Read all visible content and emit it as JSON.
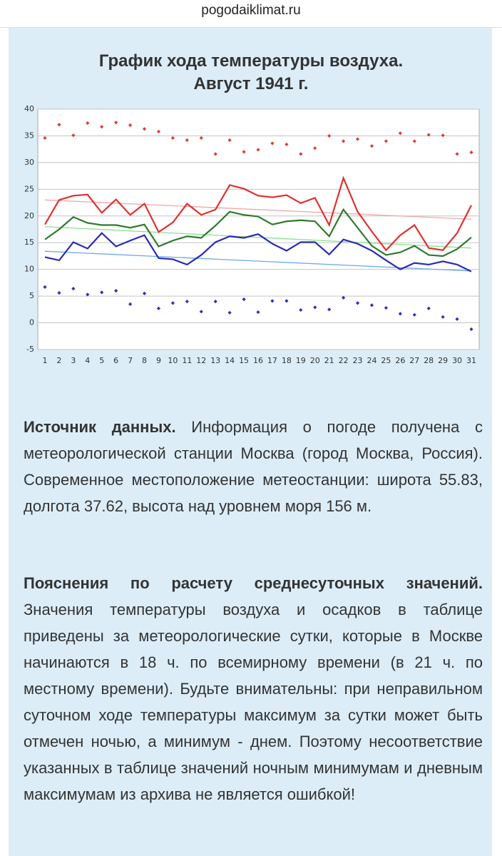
{
  "page": {
    "url": "pogodaiklimat.ru"
  },
  "chart_data": {
    "type": "line",
    "title": "График хода температуры воздуха.",
    "subtitle": "Август 1941 г.",
    "categories": [
      "1",
      "2",
      "3",
      "4",
      "5",
      "6",
      "7",
      "8",
      "9",
      "10",
      "11",
      "12",
      "13",
      "14",
      "15",
      "16",
      "17",
      "18",
      "19",
      "20",
      "21",
      "22",
      "23",
      "24",
      "25",
      "26",
      "27",
      "28",
      "29",
      "30",
      "31"
    ],
    "ylim": [
      -5,
      40
    ],
    "yticks": [
      -5,
      0,
      5,
      10,
      15,
      20,
      25,
      30,
      35,
      40
    ],
    "grid": true,
    "trends": [
      {
        "color": "#f0a8a8",
        "values": [
          23.0,
          19.4
        ]
      },
      {
        "color": "#8ee08e",
        "values": [
          18.0,
          14.0
        ]
      },
      {
        "color": "#70a8e8",
        "values": [
          13.4,
          9.7
        ]
      }
    ],
    "series": [
      {
        "style": "markers",
        "color": "#e03a3a",
        "values": [
          34.6,
          37.1,
          35.1,
          37.4,
          36.7,
          37.5,
          37.0,
          36.3,
          35.8,
          34.6,
          34.2,
          34.6,
          31.6,
          34.2,
          32.0,
          32.4,
          33.6,
          33.4,
          31.6,
          32.7,
          35.0,
          34.0,
          34.4,
          33.1,
          34.0,
          35.5,
          34.0,
          35.2,
          35.1,
          31.6,
          31.9
        ]
      },
      {
        "style": "line",
        "color": "#e03030",
        "values": [
          18.4,
          23.0,
          23.8,
          24.0,
          20.6,
          23.1,
          20.2,
          22.3,
          17.0,
          18.8,
          22.3,
          20.2,
          21.2,
          25.8,
          25.1,
          23.8,
          23.5,
          23.9,
          22.4,
          23.4,
          18.3,
          27.1,
          20.8,
          17.1,
          13.6,
          16.4,
          18.3,
          14.0,
          13.6,
          16.8,
          22.0
        ]
      },
      {
        "style": "line",
        "color": "#2e7a2e",
        "values": [
          15.6,
          17.5,
          19.8,
          18.7,
          18.3,
          18.3,
          17.8,
          18.4,
          14.3,
          15.4,
          16.2,
          15.9,
          18.2,
          20.8,
          20.2,
          19.9,
          18.4,
          19.0,
          19.2,
          19.0,
          16.2,
          21.2,
          17.8,
          14.4,
          12.7,
          13.2,
          14.4,
          12.7,
          12.5,
          13.8,
          16.0
        ]
      },
      {
        "style": "line",
        "color": "#2a2ab8",
        "values": [
          12.3,
          11.7,
          15.1,
          13.9,
          16.8,
          14.3,
          15.4,
          16.4,
          12.1,
          11.9,
          10.9,
          12.7,
          15.1,
          16.2,
          15.9,
          16.6,
          14.8,
          13.5,
          15.1,
          15.1,
          12.8,
          15.6,
          14.8,
          13.5,
          11.7,
          10.0,
          11.2,
          10.9,
          11.5,
          10.9,
          9.6
        ]
      },
      {
        "style": "markers",
        "color": "#3030c0",
        "values": [
          6.7,
          5.6,
          6.4,
          5.3,
          5.7,
          6.0,
          3.5,
          5.5,
          2.7,
          3.7,
          4.0,
          2.1,
          4.0,
          1.9,
          4.4,
          2.0,
          4.1,
          4.1,
          2.4,
          2.9,
          2.5,
          4.7,
          3.7,
          3.3,
          2.8,
          1.7,
          1.5,
          2.7,
          1.1,
          0.7,
          -1.2
        ]
      }
    ]
  },
  "sections": [
    {
      "heading": "Источник данных.",
      "text": "Информация о погоде получена с метеорологической станции Москва (город Москва, Россия). Современное местоположение метеостанции: широта 55.83, долгота 37.62, высота над уровнем моря 156 м."
    },
    {
      "heading": "Пояснения по расчету среднесуточных значений.",
      "text": "Значения температуры воздуха и осадков в таблице приведены за метеорологические сутки, которые в Москве начинаются в 18 ч. по всемирному времени (в 21 ч. по местному времени). Будьте внимательны: при неправильном суточном ходе температуры максимум за сутки может быть отмечен ночью, а минимум - днем. Поэтому несоответствие указанных в таблице значений ночным минимумам и дневным максимумам из архива не является ошибкой!"
    }
  ]
}
